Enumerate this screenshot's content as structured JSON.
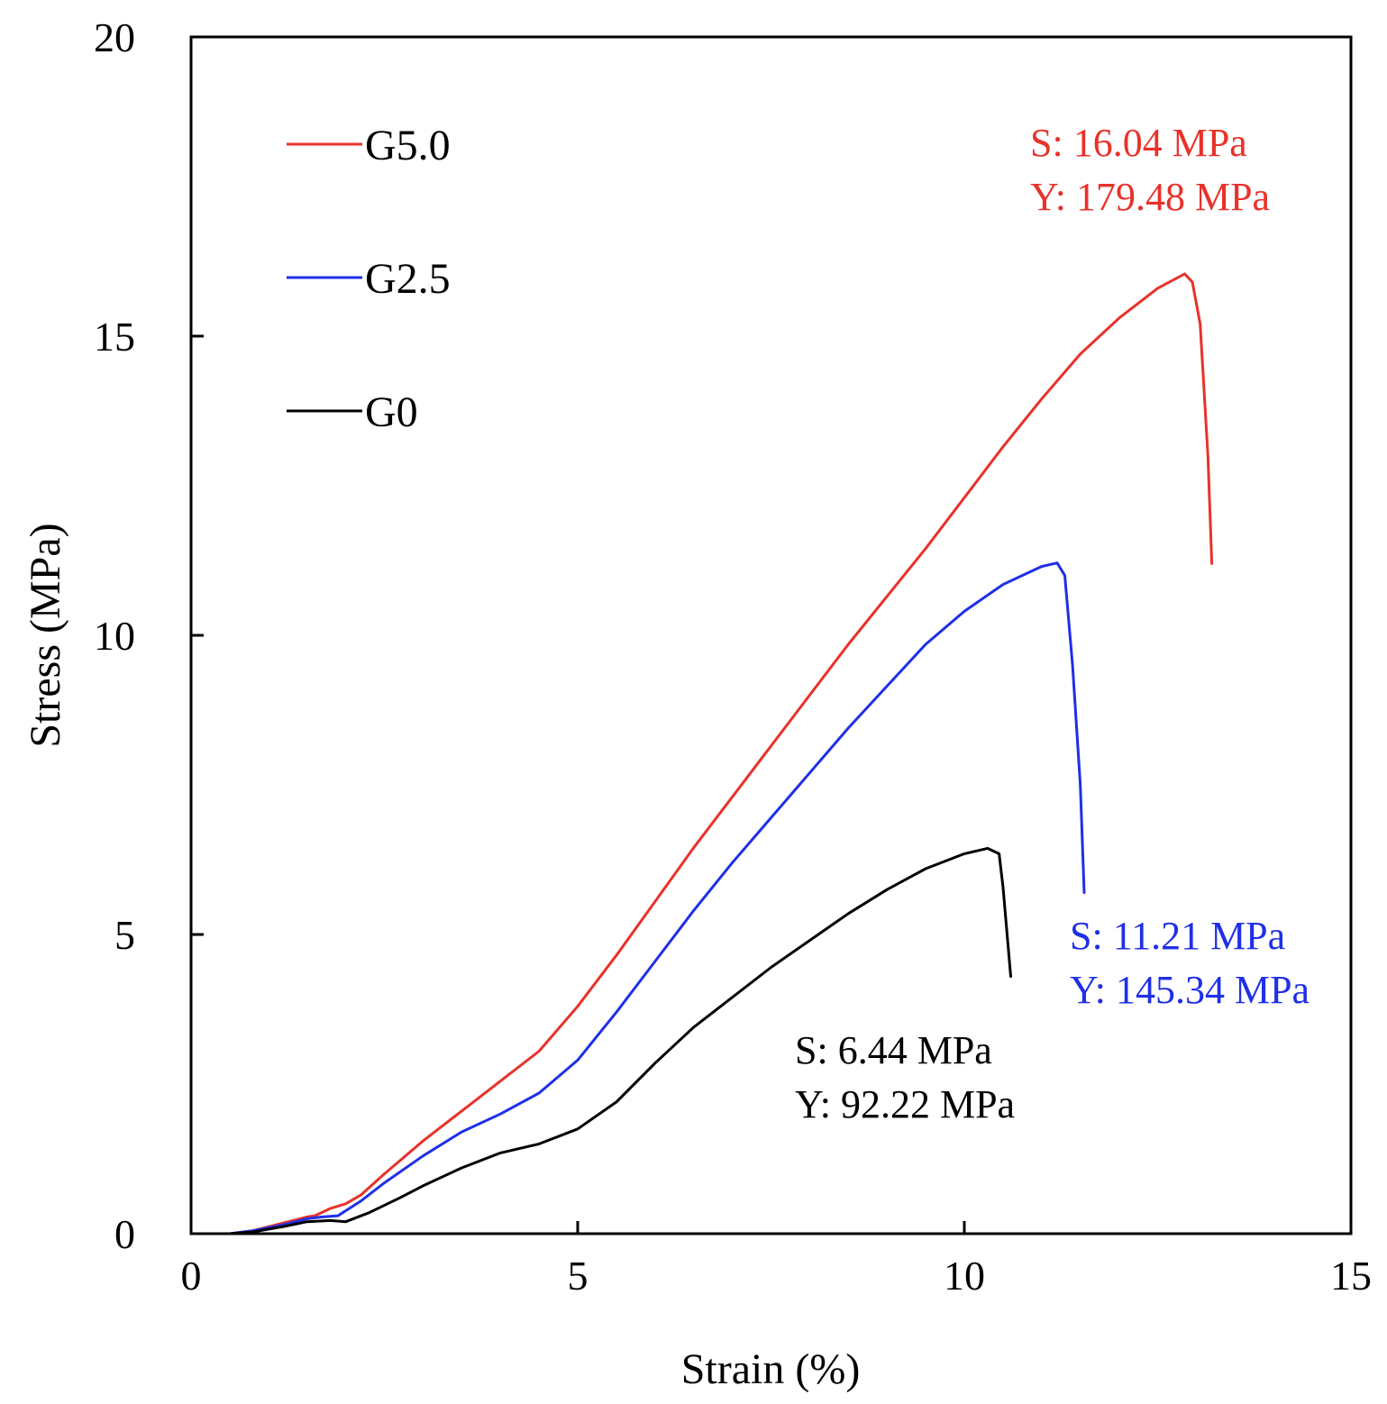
{
  "chart_data": {
    "type": "line",
    "title": "",
    "xlabel": "Strain (%)",
    "ylabel": "Stress (MPa)",
    "xlim": [
      0,
      15
    ],
    "ylim": [
      0,
      20
    ],
    "xticks": [
      0,
      5,
      10,
      15
    ],
    "yticks": [
      0,
      5,
      10,
      15,
      20
    ],
    "grid": false,
    "legend_position": "top-left",
    "series": [
      {
        "name": "G5.0",
        "color": "#e8322a",
        "points": [
          [
            0.5,
            0
          ],
          [
            0.8,
            0.05
          ],
          [
            1.2,
            0.18
          ],
          [
            1.5,
            0.28
          ],
          [
            1.6,
            0.3
          ],
          [
            1.8,
            0.42
          ],
          [
            2.0,
            0.5
          ],
          [
            2.2,
            0.65
          ],
          [
            2.5,
            1.0
          ],
          [
            3.0,
            1.55
          ],
          [
            3.5,
            2.05
          ],
          [
            4.0,
            2.55
          ],
          [
            4.5,
            3.05
          ],
          [
            5.0,
            3.8
          ],
          [
            5.5,
            4.65
          ],
          [
            6.0,
            5.55
          ],
          [
            6.5,
            6.45
          ],
          [
            7.0,
            7.3
          ],
          [
            7.5,
            8.15
          ],
          [
            8.0,
            9.0
          ],
          [
            8.5,
            9.85
          ],
          [
            9.0,
            10.65
          ],
          [
            9.5,
            11.45
          ],
          [
            10.0,
            12.3
          ],
          [
            10.5,
            13.15
          ],
          [
            11.0,
            13.95
          ],
          [
            11.5,
            14.7
          ],
          [
            12.0,
            15.3
          ],
          [
            12.5,
            15.8
          ],
          [
            12.85,
            16.04
          ],
          [
            12.95,
            15.9
          ],
          [
            13.05,
            15.2
          ],
          [
            13.15,
            13.0
          ],
          [
            13.2,
            11.2
          ]
        ]
      },
      {
        "name": "G2.5",
        "color": "#1f2fe6",
        "points": [
          [
            0.5,
            0
          ],
          [
            0.8,
            0.05
          ],
          [
            1.2,
            0.15
          ],
          [
            1.5,
            0.25
          ],
          [
            1.7,
            0.28
          ],
          [
            1.9,
            0.3
          ],
          [
            2.2,
            0.55
          ],
          [
            2.5,
            0.85
          ],
          [
            3.0,
            1.3
          ],
          [
            3.5,
            1.7
          ],
          [
            4.0,
            2.0
          ],
          [
            4.5,
            2.35
          ],
          [
            5.0,
            2.9
          ],
          [
            5.5,
            3.7
          ],
          [
            6.0,
            4.55
          ],
          [
            6.5,
            5.4
          ],
          [
            7.0,
            6.2
          ],
          [
            7.5,
            6.95
          ],
          [
            8.0,
            7.7
          ],
          [
            8.5,
            8.45
          ],
          [
            9.0,
            9.15
          ],
          [
            9.5,
            9.85
          ],
          [
            10.0,
            10.4
          ],
          [
            10.5,
            10.85
          ],
          [
            11.0,
            11.15
          ],
          [
            11.2,
            11.21
          ],
          [
            11.3,
            11.0
          ],
          [
            11.4,
            9.5
          ],
          [
            11.5,
            7.5
          ],
          [
            11.55,
            5.7
          ]
        ]
      },
      {
        "name": "G0",
        "color": "#000000",
        "points": [
          [
            0.5,
            0
          ],
          [
            0.8,
            0.03
          ],
          [
            1.2,
            0.12
          ],
          [
            1.5,
            0.2
          ],
          [
            1.8,
            0.22
          ],
          [
            2.0,
            0.2
          ],
          [
            2.3,
            0.35
          ],
          [
            2.7,
            0.6
          ],
          [
            3.0,
            0.8
          ],
          [
            3.5,
            1.1
          ],
          [
            4.0,
            1.35
          ],
          [
            4.5,
            1.5
          ],
          [
            5.0,
            1.75
          ],
          [
            5.5,
            2.2
          ],
          [
            6.0,
            2.85
          ],
          [
            6.5,
            3.45
          ],
          [
            7.0,
            3.95
          ],
          [
            7.5,
            4.45
          ],
          [
            8.0,
            4.9
          ],
          [
            8.5,
            5.35
          ],
          [
            9.0,
            5.75
          ],
          [
            9.5,
            6.1
          ],
          [
            10.0,
            6.35
          ],
          [
            10.3,
            6.44
          ],
          [
            10.45,
            6.35
          ],
          [
            10.5,
            5.8
          ],
          [
            10.6,
            4.3
          ]
        ]
      }
    ],
    "annotations": [
      {
        "series": "G5.0",
        "color": "#e8322a",
        "lines": [
          "S: 16.04 MPa",
          "Y: 179.48 MPa"
        ]
      },
      {
        "series": "G2.5",
        "color": "#1f2fe6",
        "lines": [
          "S: 11.21 MPa",
          "Y: 145.34 MPa"
        ]
      },
      {
        "series": "G0",
        "color": "#000000",
        "lines": [
          "S: 6.44 MPa",
          "Y: 92.22 MPa"
        ]
      }
    ]
  }
}
